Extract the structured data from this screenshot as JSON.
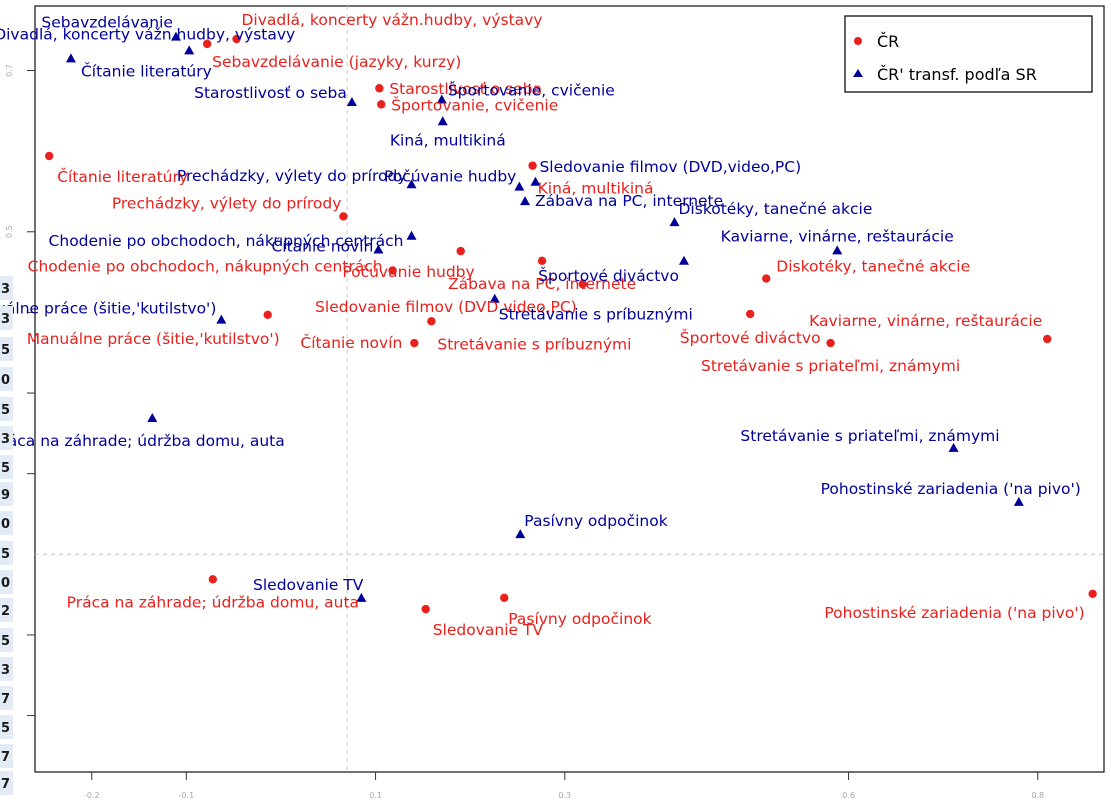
{
  "chart_data": {
    "type": "scatter",
    "title": "",
    "xlabel": "",
    "ylabel": "",
    "xlim": [
      -0.26,
      0.87
    ],
    "ylim": [
      -0.17,
      0.78
    ],
    "x_ticks": [
      -0.2,
      -0.1,
      0.1,
      0.3,
      0.6,
      0.8
    ],
    "y_ticks": [
      0.7,
      0.5
    ],
    "grid": false,
    "reference_lines": {
      "x": 0.07,
      "y": 0.1
    },
    "legend": {
      "placement": "top-right",
      "entries": [
        {
          "label": "ČR",
          "marker": "circle",
          "color": "#e8211d"
        },
        {
          "label": "ČR' transf. podľa SR",
          "marker": "triangle",
          "color": "#000099"
        }
      ]
    },
    "series": [
      {
        "name": "ČR",
        "marker": "circle",
        "color": "#e8211d",
        "points": [
          {
            "x": -0.047,
            "y": 0.739,
            "label": "Divadlá, koncerty vážn.hudby, výstavy",
            "anchor": "start",
            "dx": 5,
            "dy": -14
          },
          {
            "x": -0.078,
            "y": 0.733,
            "label": "Sebavzdelávanie (jazyky, kurzy)",
            "anchor": "start",
            "dx": 5,
            "dy": 23
          },
          {
            "x": 0.104,
            "y": 0.678,
            "label": "Starostlivosť o seba",
            "anchor": "start",
            "dx": 10,
            "dy": 6
          },
          {
            "x": 0.106,
            "y": 0.658,
            "label": "Športovanie, cvičenie",
            "anchor": "start",
            "dx": 10,
            "dy": 6
          },
          {
            "x": -0.245,
            "y": 0.594,
            "label": "Čítanie literatúry",
            "anchor": "start",
            "dx": 8,
            "dy": 26
          },
          {
            "x": 0.266,
            "y": 0.582,
            "label": "Kiná, multikiná",
            "anchor": "start",
            "dx": 5,
            "dy": 28
          },
          {
            "x": 0.066,
            "y": 0.519,
            "label": "Prechádzky, výlety do prírody",
            "anchor": "end",
            "dx": -2,
            "dy": -8
          },
          {
            "x": 0.19,
            "y": 0.476,
            "label": "Počúvanie hudby",
            "anchor": "end",
            "dx": 14,
            "dy": 26
          },
          {
            "x": 0.276,
            "y": 0.464,
            "label": "Zábava na PC, internete",
            "anchor": "middle",
            "dx": 0,
            "dy": 28
          },
          {
            "x": 0.118,
            "y": 0.452,
            "label": "Chodenie po obchodoch, nákupných centrách",
            "anchor": "end",
            "dx": -10,
            "dy": 1
          },
          {
            "x": 0.513,
            "y": 0.442,
            "label": "Diskotéky, tanečné akcie",
            "anchor": "start",
            "dx": 10,
            "dy": -7
          },
          {
            "x": 0.319,
            "y": 0.435,
            "label": "Sledovanie filmov (DVD,video,PC)",
            "anchor": "end",
            "dx": -6,
            "dy": 28
          },
          {
            "x": -0.014,
            "y": 0.397,
            "label": "Manuálne práce (šitie,'kutilstvo')",
            "anchor": "end",
            "dx": 12,
            "dy": 29
          },
          {
            "x": 0.496,
            "y": 0.398,
            "label": "Športové diváctvo",
            "anchor": "middle",
            "dx": 0,
            "dy": 29
          },
          {
            "x": 0.159,
            "y": 0.389,
            "label": "Stretávanie s príbuznými",
            "anchor": "start",
            "dx": 6,
            "dy": 28
          },
          {
            "x": 0.81,
            "y": 0.367,
            "label": "Kaviarne, vinárne, reštaurácie",
            "anchor": "end",
            "dx": -5,
            "dy": -13
          },
          {
            "x": 0.141,
            "y": 0.362,
            "label": "Čítanie novín",
            "anchor": "end",
            "dx": -12,
            "dy": 5
          },
          {
            "x": 0.581,
            "y": 0.362,
            "label": "Stretávanie s priateľmi, známymi",
            "anchor": "middle",
            "dx": 0,
            "dy": 28
          },
          {
            "x": -0.072,
            "y": 0.069,
            "label": "Práca na záhrade; údržba domu, auta",
            "anchor": "middle",
            "dx": 0,
            "dy": 28
          },
          {
            "x": 0.858,
            "y": 0.051,
            "label": "Pohostinské zariadenia ('na pivo')",
            "anchor": "end",
            "dx": -8,
            "dy": 24
          },
          {
            "x": 0.236,
            "y": 0.046,
            "label": "Pasívny odpočinok",
            "anchor": "start",
            "dx": 4,
            "dy": 26
          },
          {
            "x": 0.153,
            "y": 0.032,
            "label": "Sledovanie TV",
            "anchor": "start",
            "dx": 7,
            "dy": 26
          }
        ]
      },
      {
        "name": "ČR' transf. podľa SR",
        "marker": "triangle",
        "color": "#000099",
        "points": [
          {
            "x": -0.111,
            "y": 0.742,
            "label": "Sebavzdelávanie",
            "anchor": "end",
            "dx": -3,
            "dy": -9
          },
          {
            "x": -0.097,
            "y": 0.725,
            "label": "Divadlá, koncerty vážn.hudby, výstavy",
            "anchor": "end",
            "dx": 106,
            "dy": -11
          },
          {
            "x": -0.222,
            "y": 0.715,
            "label": "Čítanie literatúry",
            "anchor": "start",
            "dx": 10,
            "dy": 18
          },
          {
            "x": 0.075,
            "y": 0.661,
            "label": "Starostlivosť o seba",
            "anchor": "end",
            "dx": -5,
            "dy": -4
          },
          {
            "x": 0.17,
            "y": 0.664,
            "label": "Športovanie, cvičenie",
            "anchor": "start",
            "dx": 6,
            "dy": -4
          },
          {
            "x": 0.171,
            "y": 0.637,
            "label": "Kiná, multikiná",
            "anchor": "end",
            "dx": 63,
            "dy": 24
          },
          {
            "x": 0.138,
            "y": 0.559,
            "label": "Prechádzky, výlety do prírody",
            "anchor": "end",
            "dx": -5,
            "dy": -3
          },
          {
            "x": 0.252,
            "y": 0.556,
            "label": "Počúvanie hudby",
            "anchor": "end",
            "dx": -3,
            "dy": -5
          },
          {
            "x": 0.269,
            "y": 0.562,
            "label": "Sledovanie filmov (DVD,video,PC)",
            "anchor": "start",
            "dx": 4,
            "dy": -10
          },
          {
            "x": 0.258,
            "y": 0.538,
            "label": "Zábava na PC, internete",
            "anchor": "start",
            "dx": 10,
            "dy": 5
          },
          {
            "x": 0.416,
            "y": 0.512,
            "label": "Diskotéky, tanečné akcie",
            "anchor": "start",
            "dx": 4,
            "dy": -8
          },
          {
            "x": 0.138,
            "y": 0.495,
            "label": "Chodenie po obchodoch, nákupných centrách",
            "anchor": "end",
            "dx": -8,
            "dy": 10
          },
          {
            "x": 0.588,
            "y": 0.477,
            "label": "Kaviarne, vinárne, reštaurácie",
            "anchor": "middle",
            "dx": 0,
            "dy": -9
          },
          {
            "x": 0.426,
            "y": 0.464,
            "label": "Športové diváctvo",
            "anchor": "end",
            "dx": -5,
            "dy": 20
          },
          {
            "x": 0.103,
            "y": 0.478,
            "label": "Čítanie novín",
            "anchor": "end",
            "dx": -5,
            "dy": 2
          },
          {
            "x": -0.063,
            "y": 0.391,
            "label": "Manuálne práce (šitie,'kutilstvo')",
            "anchor": "end",
            "dx": -5,
            "dy": -6
          },
          {
            "x": 0.226,
            "y": 0.417,
            "label": "Stretávanie s príbuznými",
            "anchor": "start",
            "dx": 4,
            "dy": 21
          },
          {
            "x": -0.136,
            "y": 0.269,
            "label": "Práca na záhrade; údržba domu, auta",
            "anchor": "start",
            "dx": -160,
            "dy": 28
          },
          {
            "x": 0.711,
            "y": 0.232,
            "label": "Stretávanie s priateľmi, známymi",
            "anchor": "end",
            "dx": 46,
            "dy": -7
          },
          {
            "x": 0.78,
            "y": 0.165,
            "label": "Pohostinské zariadenia ('na pivo')",
            "anchor": "end",
            "dx": 62,
            "dy": -8
          },
          {
            "x": 0.253,
            "y": 0.125,
            "label": "Pasívny odpočinok",
            "anchor": "start",
            "dx": 4,
            "dy": -8
          },
          {
            "x": 0.085,
            "y": 0.046,
            "label": "Sledovanie TV",
            "anchor": "end",
            "dx": 2,
            "dy": -8
          }
        ]
      }
    ]
  },
  "edge_numbers": [
    "3",
    "3",
    "5",
    "0",
    "5",
    "3",
    "5",
    "9",
    "0",
    "5",
    "0",
    "2",
    "5",
    "3",
    "7",
    "5",
    "7",
    "7"
  ]
}
